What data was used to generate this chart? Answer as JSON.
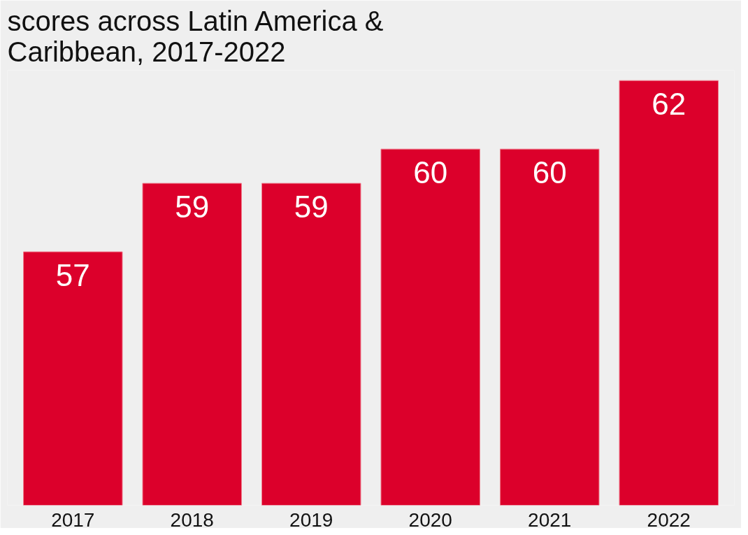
{
  "chart_data": {
    "type": "bar",
    "title": "scores across Latin America &\nCaribbean, 2017-2022",
    "categories": [
      "2017",
      "2018",
      "2019",
      "2020",
      "2021",
      "2022"
    ],
    "values": [
      57,
      59,
      59,
      60,
      60,
      62
    ],
    "color": "#dc002b",
    "ylim": [
      49.6,
      62.3
    ],
    "data_labels": true,
    "grid": false,
    "tick_labels": "x"
  }
}
